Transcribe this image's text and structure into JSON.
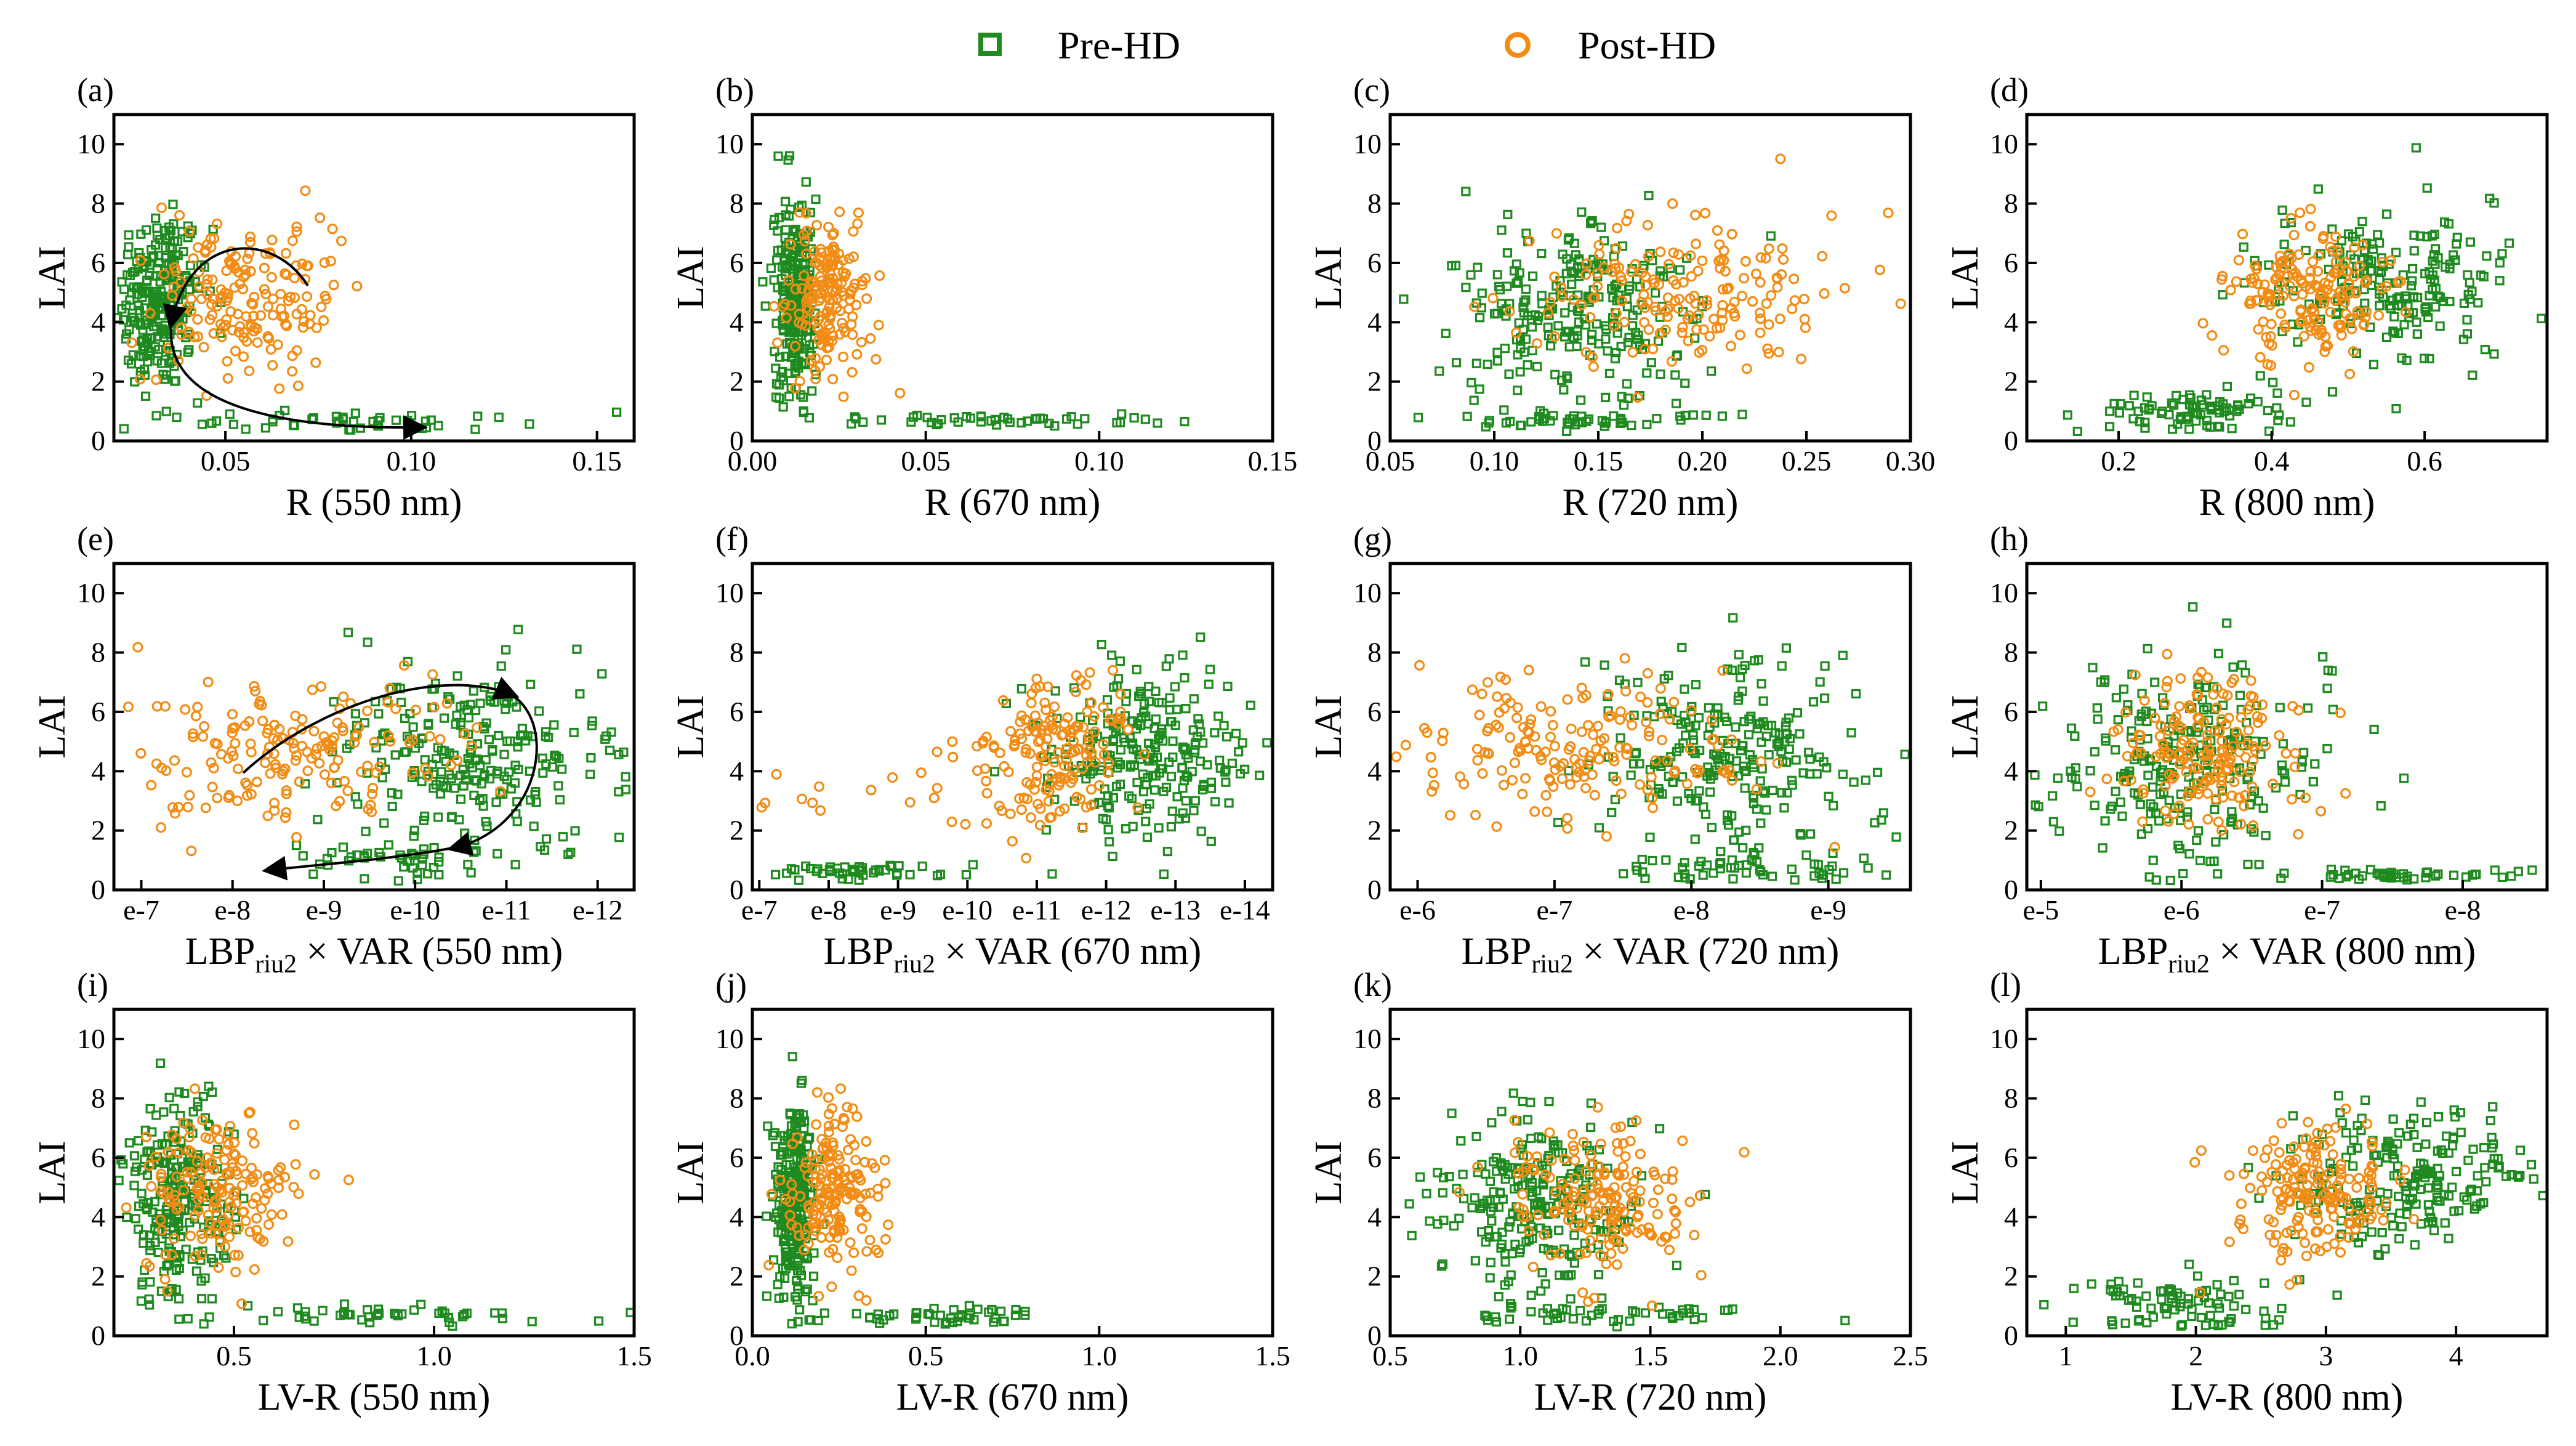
{
  "legend": [
    {
      "name": "Pre-HD",
      "marker": "square",
      "color": "#1f8a1f"
    },
    {
      "name": "Post-HD",
      "marker": "circle",
      "color": "#f28c14"
    }
  ],
  "colors": {
    "pre": "#1f8a1f",
    "post": "#f28c14",
    "axis": "#000000"
  },
  "chart_data": [
    {
      "type": "scatter",
      "panel": "(a)",
      "xlabel": "R (550 nm)",
      "ylabel": "LAI",
      "xlim": [
        0.02,
        0.16
      ],
      "ylim": [
        0,
        11
      ],
      "xticks": [
        {
          "v": 0.05,
          "label": "0.05"
        },
        {
          "v": 0.1,
          "label": "0.10"
        },
        {
          "v": 0.15,
          "label": "0.15"
        }
      ],
      "yticks": [
        0,
        2,
        4,
        6,
        8,
        10
      ],
      "clusters": {
        "pre": [
          {
            "cx": 0.032,
            "sx": 0.006,
            "cy": 4.8,
            "sy": 1.6,
            "n": 240
          },
          {
            "cx": 0.09,
            "sx": 0.028,
            "cy": 0.7,
            "sy": 0.15,
            "n": 45
          }
        ],
        "post": [
          {
            "cx": 0.055,
            "sx": 0.012,
            "cy": 4.8,
            "sy": 1.3,
            "n": 170
          }
        ]
      },
      "arrow": true
    },
    {
      "type": "scatter",
      "panel": "(b)",
      "xlabel": "R (670 nm)",
      "ylabel": "LAI",
      "xlim": [
        0,
        0.15
      ],
      "ylim": [
        0,
        11
      ],
      "xticks": [
        {
          "v": 0,
          "label": "0.00"
        },
        {
          "v": 0.05,
          "label": "0.05"
        },
        {
          "v": 0.1,
          "label": "0.10"
        },
        {
          "v": 0.15,
          "label": "0.15"
        }
      ],
      "yticks": [
        0,
        2,
        4,
        6,
        8,
        10
      ],
      "clusters": {
        "pre": [
          {
            "cx": 0.012,
            "sx": 0.003,
            "cy": 4.8,
            "sy": 1.6,
            "n": 240
          },
          {
            "cx": 0.07,
            "sx": 0.025,
            "cy": 0.7,
            "sy": 0.15,
            "n": 45
          }
        ],
        "post": [
          {
            "cx": 0.022,
            "sx": 0.006,
            "cy": 4.8,
            "sy": 1.3,
            "n": 170
          }
        ]
      }
    },
    {
      "type": "scatter",
      "panel": "(c)",
      "xlabel": "R (720 nm)",
      "ylabel": "LAI",
      "xlim": [
        0.05,
        0.3
      ],
      "ylim": [
        0,
        11
      ],
      "xticks": [
        {
          "v": 0.05,
          "label": "0.05"
        },
        {
          "v": 0.1,
          "label": "0.10"
        },
        {
          "v": 0.15,
          "label": "0.15"
        },
        {
          "v": 0.2,
          "label": "0.20"
        },
        {
          "v": 0.25,
          "label": "0.25"
        },
        {
          "v": 0.3,
          "label": "0.30"
        }
      ],
      "yticks": [
        0,
        2,
        4,
        6,
        8,
        10
      ],
      "clusters": {
        "pre": [
          {
            "cx": 0.14,
            "sx": 0.03,
            "cy": 4.5,
            "sy": 1.7,
            "n": 240
          },
          {
            "cx": 0.15,
            "sx": 0.04,
            "cy": 0.7,
            "sy": 0.15,
            "n": 45
          }
        ],
        "post": [
          {
            "cx": 0.19,
            "sx": 0.04,
            "cy": 4.8,
            "sy": 1.2,
            "n": 170
          }
        ]
      }
    },
    {
      "type": "scatter",
      "panel": "(d)",
      "xlabel": "R (800 nm)",
      "ylabel": "LAI",
      "xlim": [
        0.08,
        0.76
      ],
      "ylim": [
        0,
        11
      ],
      "xticks": [
        {
          "v": 0.2,
          "label": "0.2"
        },
        {
          "v": 0.4,
          "label": "0.4"
        },
        {
          "v": 0.6,
          "label": "0.6"
        }
      ],
      "yticks": [
        0,
        2,
        4,
        6,
        8,
        10
      ],
      "clusters": {
        "pre": [
          {
            "cx": 0.55,
            "sx": 0.08,
            "cy": 5.3,
            "sy": 1.2,
            "n": 200
          },
          {
            "cx": 0.3,
            "sx": 0.07,
            "cy": 1.0,
            "sy": 0.4,
            "n": 85
          }
        ],
        "post": [
          {
            "cx": 0.45,
            "sx": 0.05,
            "cy": 4.8,
            "sy": 1.1,
            "n": 170
          }
        ]
      }
    },
    {
      "type": "scatter",
      "panel": "(e)",
      "xlabel": "LBP",
      "xlabel_sub": "riu2",
      "xlabel_rest": " × VAR (550 nm)",
      "ylabel": "LAI",
      "xlim": [
        -6.7,
        -12.4
      ],
      "ylim": [
        0,
        11
      ],
      "xticks": [
        {
          "v": -7,
          "label": "e-7"
        },
        {
          "v": -8,
          "label": "e-8"
        },
        {
          "v": -9,
          "label": "e-9"
        },
        {
          "v": -10,
          "label": "e-10"
        },
        {
          "v": -11,
          "label": "e-11"
        },
        {
          "v": -12,
          "label": "e-12"
        }
      ],
      "yticks": [
        0,
        2,
        4,
        6,
        8,
        10
      ],
      "clusters": {
        "pre": [
          {
            "cx": -10.7,
            "sx": 0.8,
            "cy": 4.5,
            "sy": 1.5,
            "n": 240
          },
          {
            "cx": -9.8,
            "sx": 0.7,
            "cy": 1.0,
            "sy": 0.4,
            "n": 45
          }
        ],
        "post": [
          {
            "cx": -8.6,
            "sx": 0.9,
            "cy": 4.8,
            "sy": 1.3,
            "n": 170
          }
        ]
      },
      "arrow": true
    },
    {
      "type": "scatter",
      "panel": "(f)",
      "xlabel": "LBP",
      "xlabel_sub": "riu2",
      "xlabel_rest": " × VAR (670 nm)",
      "ylabel": "LAI",
      "xlim": [
        -6.9,
        -14.4
      ],
      "ylim": [
        0,
        11
      ],
      "xticks": [
        {
          "v": -7,
          "label": "e-7"
        },
        {
          "v": -8,
          "label": "e-8"
        },
        {
          "v": -9,
          "label": "e-9"
        },
        {
          "v": -10,
          "label": "e-10"
        },
        {
          "v": -11,
          "label": "e-11"
        },
        {
          "v": -12,
          "label": "e-12"
        },
        {
          "v": -13,
          "label": "e-13"
        },
        {
          "v": -14,
          "label": "e-14"
        }
      ],
      "yticks": [
        0,
        2,
        4,
        6,
        8,
        10
      ],
      "clusters": {
        "pre": [
          {
            "cx": -12.6,
            "sx": 0.7,
            "cy": 4.5,
            "sy": 1.4,
            "n": 240
          },
          {
            "cx": -8.2,
            "sx": 0.7,
            "cy": 0.6,
            "sy": 0.2,
            "n": 45
          }
        ],
        "post": [
          {
            "cx": -11.3,
            "sx": 0.5,
            "cy": 4.8,
            "sy": 1.3,
            "n": 150
          },
          {
            "cx": -9.0,
            "sx": 1.2,
            "cy": 3.5,
            "sy": 1.2,
            "n": 25
          }
        ]
      }
    },
    {
      "type": "scatter",
      "panel": "(g)",
      "xlabel": "LBP",
      "xlabel_sub": "riu2",
      "xlabel_rest": " × VAR (720 nm)",
      "ylabel": "LAI",
      "xlim": [
        -5.8,
        -9.6
      ],
      "ylim": [
        0,
        11
      ],
      "xticks": [
        {
          "v": -6,
          "label": "e-6"
        },
        {
          "v": -7,
          "label": "e-7"
        },
        {
          "v": -8,
          "label": "e-8"
        },
        {
          "v": -9,
          "label": "e-9"
        }
      ],
      "yticks": [
        0,
        2,
        4,
        6,
        8,
        10
      ],
      "clusters": {
        "pre": [
          {
            "cx": -8.3,
            "sx": 0.45,
            "cy": 4.3,
            "sy": 1.7,
            "n": 240
          },
          {
            "cx": -8.4,
            "sx": 0.5,
            "cy": 0.7,
            "sy": 0.2,
            "n": 45
          }
        ],
        "post": [
          {
            "cx": -7.2,
            "sx": 0.6,
            "cy": 4.8,
            "sy": 1.3,
            "n": 170
          }
        ]
      }
    },
    {
      "type": "scatter",
      "panel": "(h)",
      "xlabel": "LBP",
      "xlabel_sub": "riu2",
      "xlabel_rest": " × VAR (800 nm)",
      "ylabel": "LAI",
      "xlim": [
        -4.9,
        -8.6
      ],
      "ylim": [
        0,
        11
      ],
      "xticks": [
        {
          "v": -5,
          "label": "e-5"
        },
        {
          "v": -6,
          "label": "e-6"
        },
        {
          "v": -7,
          "label": "e-7"
        },
        {
          "v": -8,
          "label": "e-8"
        }
      ],
      "yticks": [
        0,
        2,
        4,
        6,
        8,
        10
      ],
      "clusters": {
        "pre": [
          {
            "cx": -6.0,
            "sx": 0.45,
            "cy": 4.3,
            "sy": 1.8,
            "n": 240
          },
          {
            "cx": -7.6,
            "sx": 0.5,
            "cy": 0.5,
            "sy": 0.1,
            "n": 45
          }
        ],
        "post": [
          {
            "cx": -6.2,
            "sx": 0.35,
            "cy": 4.8,
            "sy": 1.2,
            "n": 170
          }
        ]
      }
    },
    {
      "type": "scatter",
      "panel": "(i)",
      "xlabel": "LV-R (550 nm)",
      "ylabel": "LAI",
      "xlim": [
        0.2,
        1.5
      ],
      "ylim": [
        0,
        11
      ],
      "xticks": [
        {
          "v": 0.5,
          "label": "0.5"
        },
        {
          "v": 1.0,
          "label": "1.0"
        },
        {
          "v": 1.5,
          "label": "1.5"
        }
      ],
      "yticks": [
        0,
        2,
        4,
        6,
        8,
        10
      ],
      "clusters": {
        "pre": [
          {
            "cx": 0.36,
            "sx": 0.07,
            "cy": 4.5,
            "sy": 1.7,
            "n": 240
          },
          {
            "cx": 0.9,
            "sx": 0.2,
            "cy": 0.7,
            "sy": 0.15,
            "n": 45
          }
        ],
        "post": [
          {
            "cx": 0.46,
            "sx": 0.1,
            "cy": 4.8,
            "sy": 1.3,
            "n": 170
          }
        ]
      }
    },
    {
      "type": "scatter",
      "panel": "(j)",
      "xlabel": "LV-R (670 nm)",
      "ylabel": "LAI",
      "xlim": [
        0,
        1.5
      ],
      "ylim": [
        0,
        11
      ],
      "xticks": [
        {
          "v": 0,
          "label": "0.0"
        },
        {
          "v": 0.5,
          "label": "0.5"
        },
        {
          "v": 1.0,
          "label": "1.0"
        },
        {
          "v": 1.5,
          "label": "1.5"
        }
      ],
      "yticks": [
        0,
        2,
        4,
        6,
        8,
        10
      ],
      "clusters": {
        "pre": [
          {
            "cx": 0.12,
            "sx": 0.03,
            "cy": 4.5,
            "sy": 1.6,
            "n": 240
          },
          {
            "cx": 0.55,
            "sx": 0.15,
            "cy": 0.7,
            "sy": 0.15,
            "n": 45
          }
        ],
        "post": [
          {
            "cx": 0.24,
            "sx": 0.06,
            "cy": 4.8,
            "sy": 1.3,
            "n": 170
          }
        ]
      }
    },
    {
      "type": "scatter",
      "panel": "(k)",
      "xlabel": "LV-R (720 nm)",
      "ylabel": "LAI",
      "xlim": [
        0.5,
        2.5
      ],
      "ylim": [
        0,
        11
      ],
      "xticks": [
        {
          "v": 0.5,
          "label": "0.5"
        },
        {
          "v": 1.0,
          "label": "1.0"
        },
        {
          "v": 1.5,
          "label": "1.5"
        },
        {
          "v": 2.0,
          "label": "2.0"
        },
        {
          "v": 2.5,
          "label": "2.5"
        }
      ],
      "yticks": [
        0,
        2,
        4,
        6,
        8,
        10
      ],
      "clusters": {
        "pre": [
          {
            "cx": 1.05,
            "sx": 0.2,
            "cy": 4.5,
            "sy": 1.6,
            "n": 240
          },
          {
            "cx": 1.4,
            "sx": 0.35,
            "cy": 0.7,
            "sy": 0.15,
            "n": 45
          }
        ],
        "post": [
          {
            "cx": 1.3,
            "sx": 0.2,
            "cy": 4.8,
            "sy": 1.3,
            "n": 170
          }
        ]
      }
    },
    {
      "type": "scatter",
      "panel": "(l)",
      "xlabel": "LV-R (800 nm)",
      "ylabel": "LAI",
      "xlim": [
        0.7,
        4.7
      ],
      "ylim": [
        0,
        11
      ],
      "xticks": [
        {
          "v": 1,
          "label": "1"
        },
        {
          "v": 2,
          "label": "2"
        },
        {
          "v": 3,
          "label": "3"
        },
        {
          "v": 4,
          "label": "4"
        }
      ],
      "yticks": [
        0,
        2,
        4,
        6,
        8,
        10
      ],
      "clusters": {
        "pre": [
          {
            "cx": 3.6,
            "sx": 0.45,
            "cy": 5.3,
            "sy": 1.2,
            "n": 200
          },
          {
            "cx": 1.9,
            "sx": 0.4,
            "cy": 1.0,
            "sy": 0.5,
            "n": 85
          }
        ],
        "post": [
          {
            "cx": 2.9,
            "sx": 0.3,
            "cy": 4.8,
            "sy": 1.2,
            "n": 170
          }
        ]
      }
    }
  ]
}
